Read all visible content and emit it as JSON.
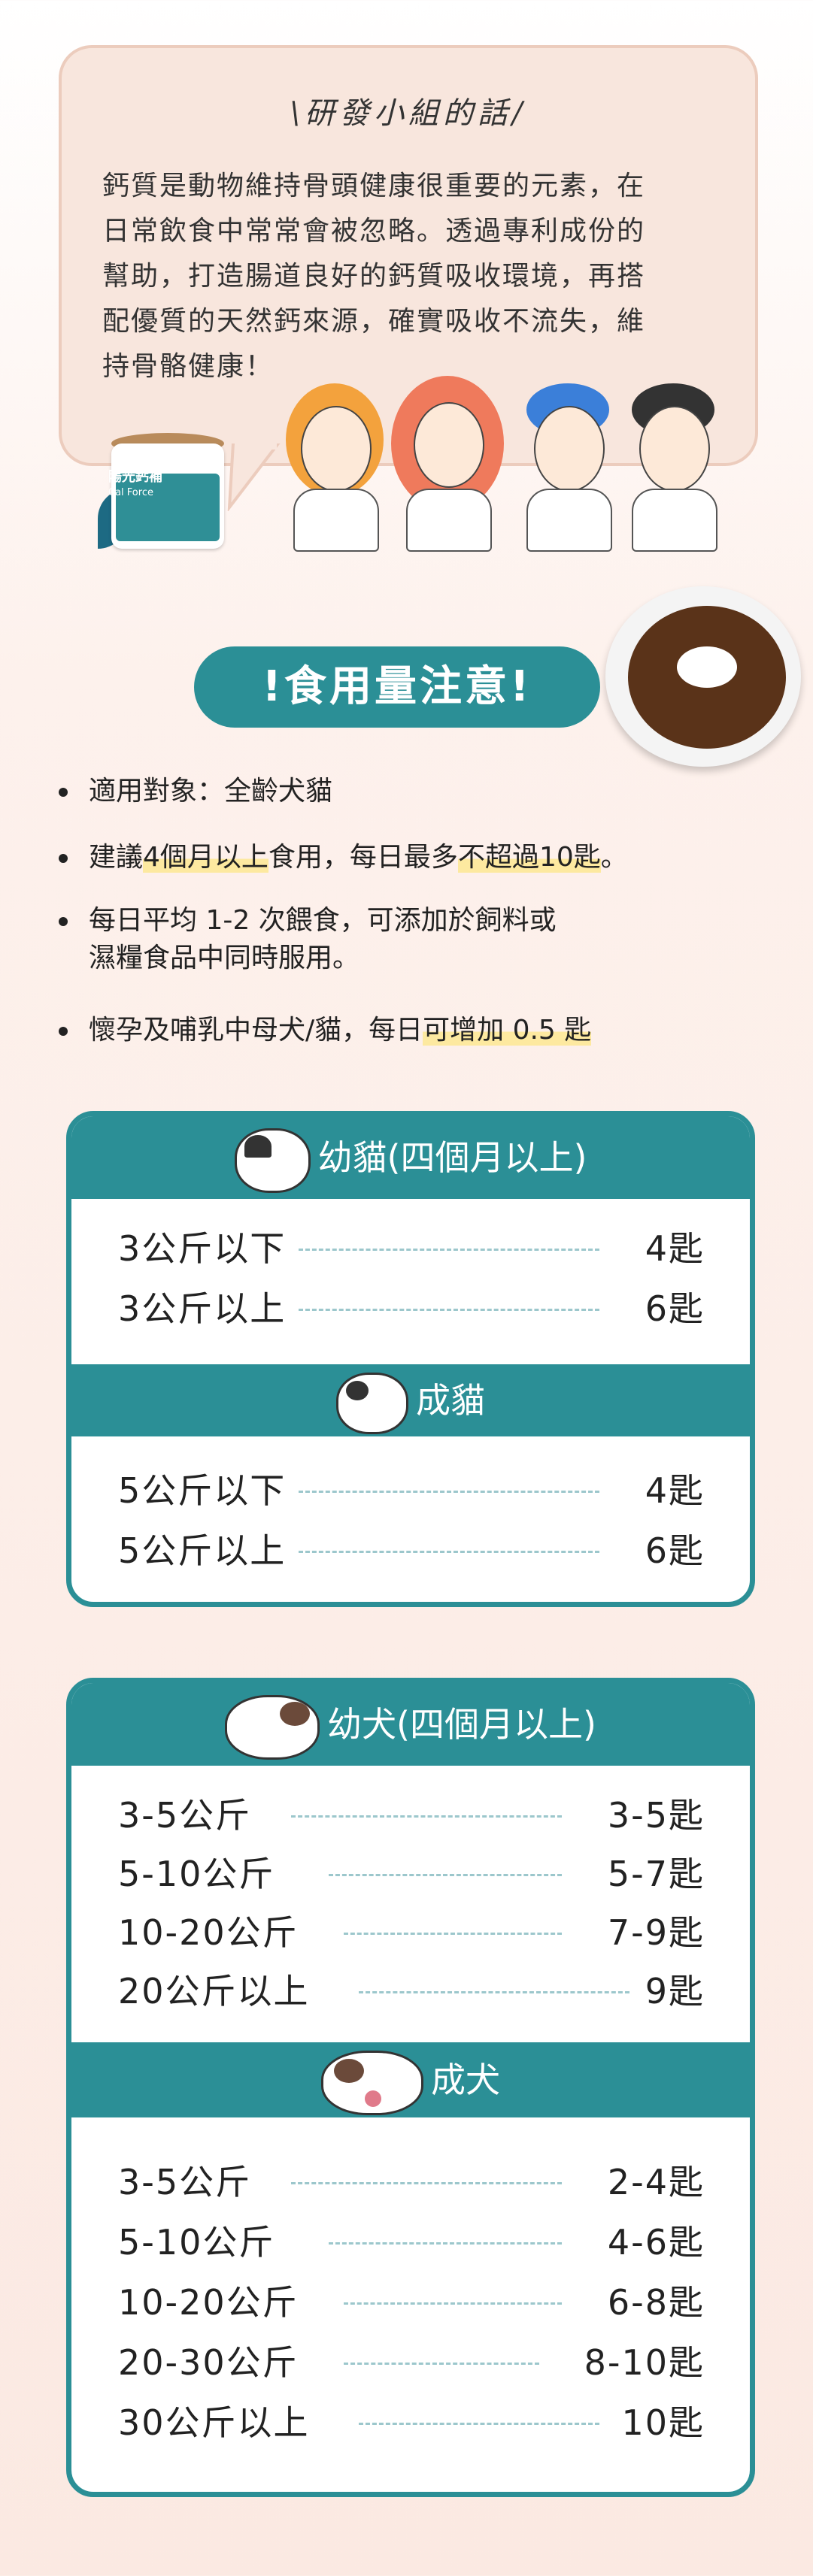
{
  "bubble": {
    "title": "\\研發小組的話/",
    "lines": [
      "鈣質是動物維持骨頭健康很重要的元素，在",
      "日常飲食中常常會被忽略。透過專利成份的",
      "幫助，打造腸道良好的鈣質吸收環境，再搭",
      "配優質的天然鈣來源，確實吸收不流失，維",
      "持骨骼健康！"
    ]
  },
  "can": {
    "name": "陽光鈣補",
    "subtitle": "Cal Force"
  },
  "notice": {
    "title": "!食用量注意!"
  },
  "bullets": [
    {
      "parts": [
        {
          "t": "適用對象：全齡犬貓",
          "hl": false
        }
      ]
    },
    {
      "parts": [
        {
          "t": "建議",
          "hl": false
        },
        {
          "t": "4個月以上",
          "hl": true
        },
        {
          "t": "食用，每日最多",
          "hl": false
        },
        {
          "t": "不超過10匙",
          "hl": true
        },
        {
          "t": "。",
          "hl": false
        }
      ]
    },
    {
      "parts": [
        {
          "t": "每日平均 1-2 次餵食，可添加於飼料或",
          "hl": false
        }
      ],
      "line2": "濕糧食品中同時服用。"
    },
    {
      "parts": [
        {
          "t": "懷孕及哺乳中母犬/貓，每日",
          "hl": false
        },
        {
          "t": "可增加 0.5 匙",
          "hl": true
        }
      ]
    }
  ],
  "cat_table": {
    "kitten_title": "幼貓(四個月以上)",
    "kitten_rows": [
      {
        "weight": "3公斤以下",
        "dose": "4匙"
      },
      {
        "weight": "3公斤以上",
        "dose": "6匙"
      }
    ],
    "adult_title": "成貓",
    "adult_rows": [
      {
        "weight": "5公斤以下",
        "dose": "4匙"
      },
      {
        "weight": "5公斤以上",
        "dose": "6匙"
      }
    ]
  },
  "dog_table": {
    "puppy_title": "幼犬(四個月以上)",
    "puppy_rows": [
      {
        "weight": "3-5公斤",
        "dose": "3-5匙"
      },
      {
        "weight": "5-10公斤",
        "dose": "5-7匙"
      },
      {
        "weight": "10-20公斤",
        "dose": "7-9匙"
      },
      {
        "weight": "20公斤以上",
        "dose": "9匙"
      }
    ],
    "adult_title": "成犬",
    "adult_rows": [
      {
        "weight": "3-5公斤",
        "dose": "2-4匙"
      },
      {
        "weight": "5-10公斤",
        "dose": "4-6匙"
      },
      {
        "weight": "10-20公斤",
        "dose": "6-8匙"
      },
      {
        "weight": "20-30公斤",
        "dose": "8-10匙"
      },
      {
        "weight": "30公斤以上",
        "dose": "10匙"
      }
    ]
  },
  "colors": {
    "teal": "#2b8f96",
    "bubble": "#f8e6dd",
    "highlight": "#fde9a0"
  }
}
